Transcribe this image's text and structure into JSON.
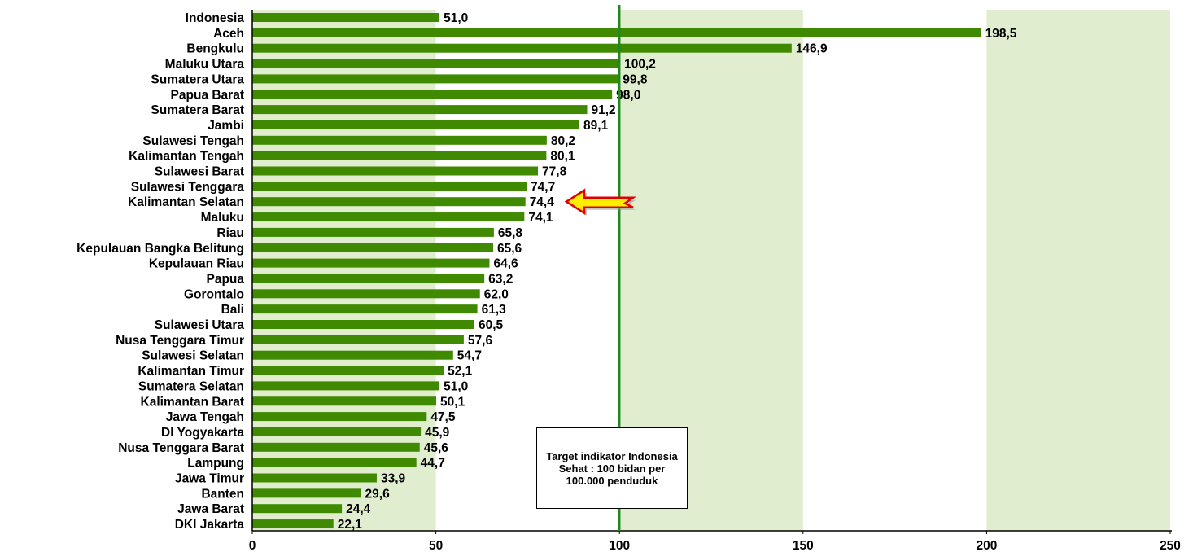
{
  "chart_data": {
    "type": "bar",
    "orientation": "horizontal",
    "categories": [
      "Indonesia",
      "Aceh",
      "Bengkulu",
      "Maluku Utara",
      "Sumatera Utara",
      "Papua Barat",
      "Sumatera Barat",
      "Jambi",
      "Sulawesi Tengah",
      "Kalimantan Tengah",
      "Sulawesi Barat",
      "Sulawesi Tenggara",
      "Kalimantan Selatan",
      "Maluku",
      "Riau",
      "Kepulauan Bangka Belitung",
      "Kepulauan Riau",
      "Papua",
      "Gorontalo",
      "Bali",
      "Sulawesi Utara",
      "Nusa Tenggara Timur",
      "Sulawesi Selatan",
      "Kalimantan Timur",
      "Sumatera Selatan",
      "Kalimantan Barat",
      "Jawa Tengah",
      "DI Yogyakarta",
      "Nusa Tenggara Barat",
      "Lampung",
      "Jawa Timur",
      "Banten",
      "Jawa Barat",
      "DKI Jakarta"
    ],
    "values": [
      51.0,
      198.5,
      146.9,
      100.2,
      99.8,
      98.0,
      91.2,
      89.1,
      80.2,
      80.1,
      77.8,
      74.7,
      74.4,
      74.1,
      65.8,
      65.6,
      64.6,
      63.2,
      62.0,
      61.3,
      60.5,
      57.6,
      54.7,
      52.1,
      51.0,
      50.1,
      47.5,
      45.9,
      45.6,
      44.7,
      33.9,
      29.6,
      24.4,
      22.1
    ],
    "value_labels": [
      "51,0",
      "198,5",
      "146,9",
      "100,2",
      "99,8",
      "98,0",
      "91,2",
      "89,1",
      "80,2",
      "80,1",
      "77,8",
      "74,7",
      "74,4",
      "74,1",
      "65,8",
      "65,6",
      "64,6",
      "63,2",
      "62,0",
      "61,3",
      "60,5",
      "57,6",
      "54,7",
      "52,1",
      "51,0",
      "50,1",
      "47,5",
      "45,9",
      "45,6",
      "44,7",
      "33,9",
      "29,6",
      "24,4",
      "22,1"
    ],
    "xlim": [
      0,
      250
    ],
    "xticks": [
      "0",
      "50",
      "100",
      "150",
      "200",
      "250"
    ],
    "bar_color": "#3f8a00",
    "band_color": "#e1edcf",
    "target_value": 100,
    "target_line_color": "#1e8a1e",
    "highlight_category": "Kalimantan Selatan",
    "arrow_colors": {
      "fill": "#ffee00",
      "stroke": "#e00000"
    },
    "annotation": "Target indikator Indonesia Sehat : 100 bidan per 100.000 penduduk"
  }
}
